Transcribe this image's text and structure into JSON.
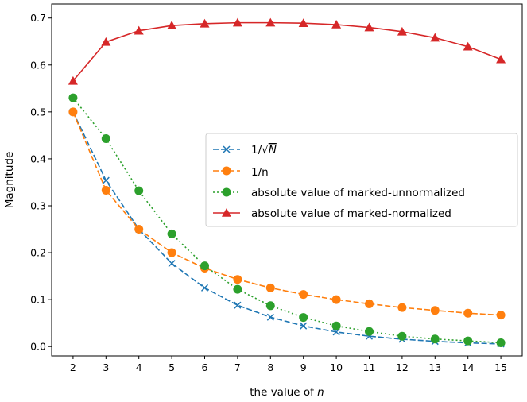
{
  "chart_data": {
    "type": "line",
    "xlabel_prefix": "the value of ",
    "xlabel_var": "n",
    "ylabel": "Magnitude",
    "x": [
      2,
      3,
      4,
      5,
      6,
      7,
      8,
      9,
      10,
      11,
      12,
      13,
      14,
      15
    ],
    "xlim": [
      1.35,
      15.65
    ],
    "ylim": [
      -0.02,
      0.73
    ],
    "yticks": [
      0.0,
      0.1,
      0.2,
      0.3,
      0.4,
      0.5,
      0.6,
      0.7
    ],
    "ytick_labels": [
      "0.0",
      "0.1",
      "0.2",
      "0.3",
      "0.4",
      "0.5",
      "0.6",
      "0.7"
    ],
    "xtick_labels": [
      "2",
      "3",
      "4",
      "5",
      "6",
      "7",
      "8",
      "9",
      "10",
      "11",
      "12",
      "13",
      "14",
      "15"
    ],
    "grid": false,
    "legend_position": "center-right",
    "series": [
      {
        "label_parts": [
          "1/",
          "√",
          "N"
        ],
        "values": [
          0.5,
          0.354,
          0.25,
          0.177,
          0.125,
          0.088,
          0.0625,
          0.044,
          0.031,
          0.022,
          0.0156,
          0.011,
          0.0078,
          0.0055
        ],
        "color": "#1f77b4",
        "line_style": "dashed",
        "marker": "x"
      },
      {
        "label": "1/n",
        "values": [
          0.5,
          0.333,
          0.25,
          0.2,
          0.167,
          0.143,
          0.125,
          0.111,
          0.1,
          0.091,
          0.083,
          0.077,
          0.071,
          0.067
        ],
        "color": "#ff7f0e",
        "line_style": "dashed",
        "marker": "circle"
      },
      {
        "label": "absolute value of marked-unnormalized",
        "values": [
          0.53,
          0.443,
          0.332,
          0.24,
          0.172,
          0.122,
          0.087,
          0.062,
          0.044,
          0.032,
          0.022,
          0.016,
          0.012,
          0.008
        ],
        "color": "#2ca02c",
        "line_style": "dotted",
        "marker": "circle"
      },
      {
        "label": "absolute value of marked-normalized",
        "values": [
          0.566,
          0.649,
          0.673,
          0.684,
          0.688,
          0.69,
          0.69,
          0.689,
          0.686,
          0.68,
          0.671,
          0.658,
          0.639,
          0.612
        ],
        "color": "#d62728",
        "line_style": "solid",
        "marker": "triangle"
      }
    ]
  }
}
